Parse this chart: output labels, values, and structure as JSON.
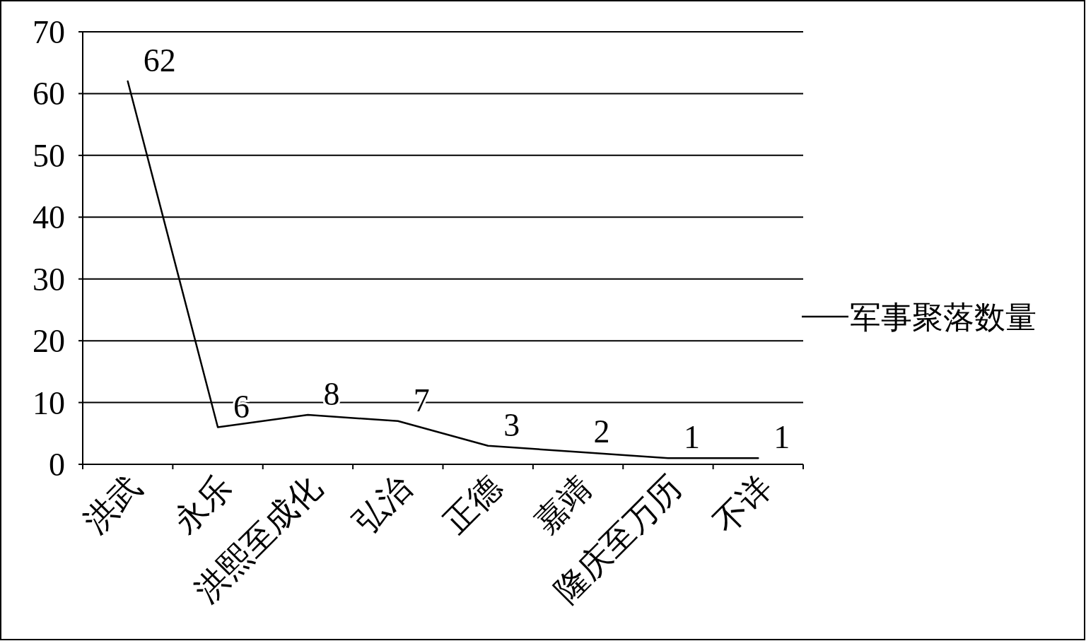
{
  "chart_data": {
    "type": "line",
    "categories": [
      "洪武",
      "永乐",
      "洪熙至成化",
      "弘治",
      "正德",
      "嘉靖",
      "隆庆至万历",
      "不详"
    ],
    "series": [
      {
        "name": "军事聚落数量",
        "color": "#000000",
        "values": [
          62,
          6,
          8,
          7,
          3,
          2,
          1,
          1
        ]
      }
    ],
    "ylim": [
      0,
      70
    ],
    "yticks": [
      0,
      10,
      20,
      30,
      40,
      50,
      60,
      70
    ],
    "grid": "y",
    "legend": "right",
    "data_labels": true
  }
}
